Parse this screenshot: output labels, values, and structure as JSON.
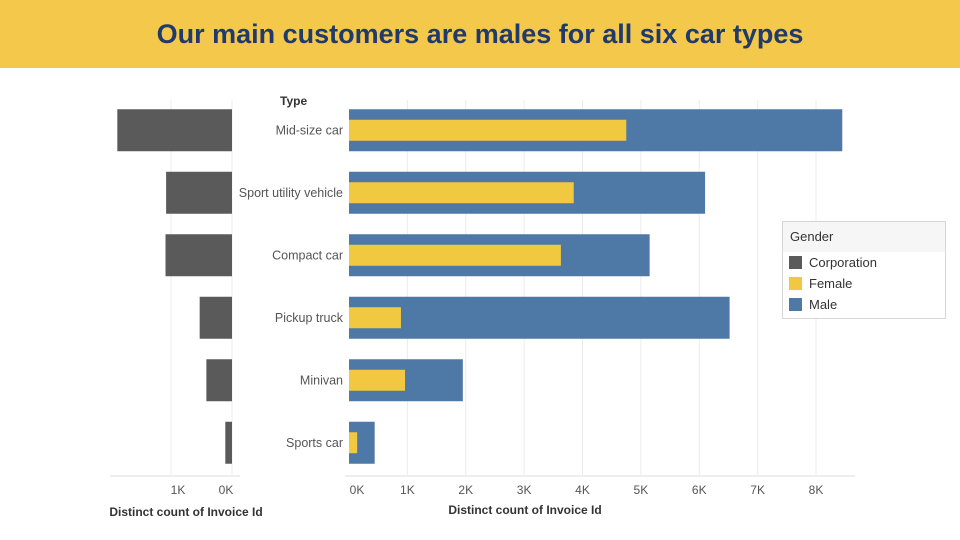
{
  "banner": {
    "title": "Our main customers are males for all six car types"
  },
  "colors": {
    "corporation": "#5a5a5a",
    "female": "#f0c940",
    "male": "#4e79a7",
    "banner": "#f4c84a",
    "title": "#1f3a6b"
  },
  "chart_data": {
    "type": "bar",
    "row_header": "Type",
    "categories": [
      "Mid-size car",
      "Sport utility vehicle",
      "Compact car",
      "Pickup truck",
      "Minivan",
      "Sports car"
    ],
    "left_panel": {
      "series": [
        {
          "name": "Corporation",
          "values": [
            1880,
            1080,
            1090,
            530,
            420,
            110
          ]
        }
      ],
      "xlim": [
        1200,
        0
      ],
      "ticks": [
        {
          "value": 1000,
          "label": "1K"
        },
        {
          "value": 0,
          "label": "0K"
        }
      ],
      "xlabel": "Distinct count of Invoice Id"
    },
    "right_panel": {
      "series": [
        {
          "name": "Male",
          "values": [
            8450,
            6100,
            5150,
            6520,
            1950,
            440
          ]
        },
        {
          "name": "Female",
          "values": [
            4750,
            3850,
            3630,
            890,
            960,
            140
          ]
        }
      ],
      "xlim": [
        0,
        8600
      ],
      "ticks": [
        {
          "value": 0,
          "label": "0K"
        },
        {
          "value": 1000,
          "label": "1K"
        },
        {
          "value": 2000,
          "label": "2K"
        },
        {
          "value": 3000,
          "label": "3K"
        },
        {
          "value": 4000,
          "label": "4K"
        },
        {
          "value": 5000,
          "label": "5K"
        },
        {
          "value": 6000,
          "label": "6K"
        },
        {
          "value": 7000,
          "label": "7K"
        },
        {
          "value": 8000,
          "label": "8K"
        }
      ],
      "xlabel": "Distinct count of Invoice Id"
    },
    "legend": {
      "title": "Gender",
      "items": [
        "Corporation",
        "Female",
        "Male"
      ],
      "placement": "right"
    },
    "grid": true
  }
}
